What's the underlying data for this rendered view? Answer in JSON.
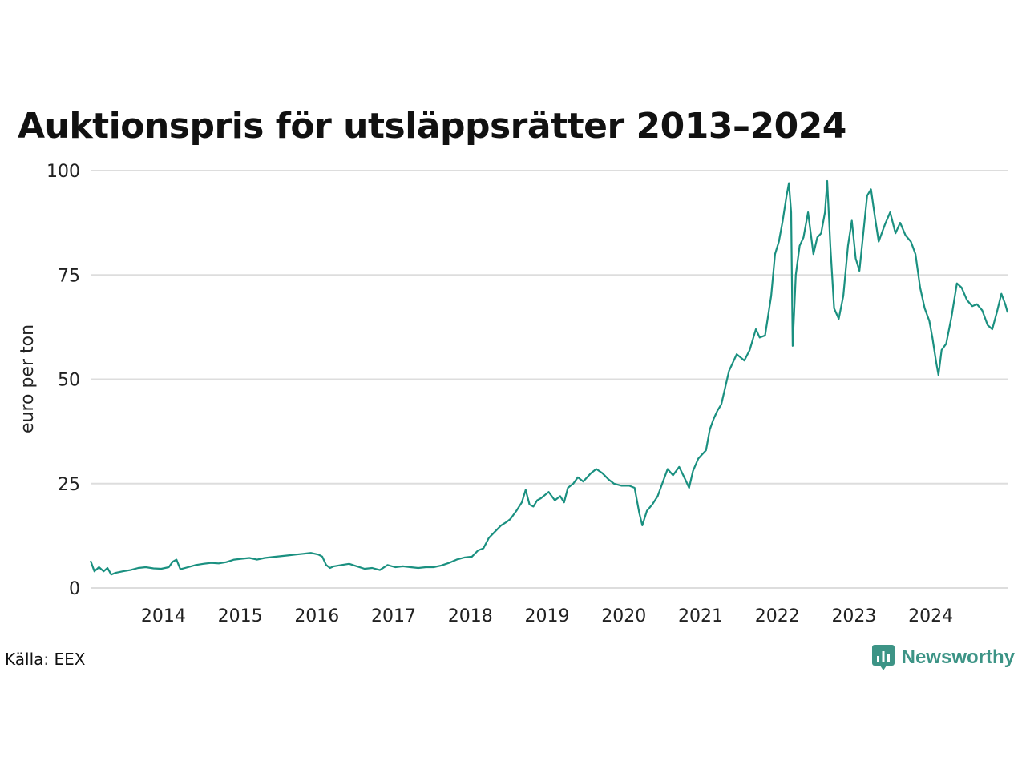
{
  "title": "Auktionspris för utsläppsrätter 2013–2024",
  "source": "Källa: EEX",
  "brand": {
    "name": "Newsworthy",
    "icon": "newsworthy-logo-icon",
    "color": "#3d9486"
  },
  "colors": {
    "line": "#1a9080",
    "grid": "#dddddd"
  },
  "chart_data": {
    "type": "line",
    "title": "Auktionspris för utsläppsrätter 2013–2024",
    "ylabel": "euro per ton",
    "xlabel": "",
    "ylim": [
      0,
      100
    ],
    "xlim": [
      2013.03,
      2024.98
    ],
    "grid": true,
    "yticks": [
      0,
      25,
      50,
      75,
      100
    ],
    "ytick_labels": [
      "0",
      "25",
      "50",
      "75",
      "100"
    ],
    "xticks": [
      2014,
      2015,
      2016,
      2017,
      2018,
      2019,
      2020,
      2021,
      2022,
      2023,
      2024
    ],
    "xtick_labels": [
      "2014",
      "2015",
      "2016",
      "2017",
      "2018",
      "2019",
      "2020",
      "2021",
      "2022",
      "2023",
      "2024"
    ],
    "series": [
      {
        "values": [
          [
            2013.03,
            6.5
          ],
          [
            2013.08,
            4.0
          ],
          [
            2013.14,
            5.0
          ],
          [
            2013.2,
            4.0
          ],
          [
            2013.25,
            4.8
          ],
          [
            2013.3,
            3.2
          ],
          [
            2013.35,
            3.6
          ],
          [
            2013.45,
            4.0
          ],
          [
            2013.55,
            4.3
          ],
          [
            2013.65,
            4.8
          ],
          [
            2013.75,
            5.0
          ],
          [
            2013.85,
            4.7
          ],
          [
            2013.95,
            4.6
          ],
          [
            2014.05,
            5.0
          ],
          [
            2014.1,
            6.3
          ],
          [
            2014.15,
            6.8
          ],
          [
            2014.2,
            4.5
          ],
          [
            2014.3,
            5.0
          ],
          [
            2014.4,
            5.5
          ],
          [
            2014.5,
            5.8
          ],
          [
            2014.6,
            6.0
          ],
          [
            2014.7,
            5.9
          ],
          [
            2014.8,
            6.2
          ],
          [
            2014.9,
            6.8
          ],
          [
            2015.0,
            7.0
          ],
          [
            2015.1,
            7.2
          ],
          [
            2015.2,
            6.8
          ],
          [
            2015.3,
            7.2
          ],
          [
            2015.4,
            7.4
          ],
          [
            2015.5,
            7.6
          ],
          [
            2015.6,
            7.8
          ],
          [
            2015.7,
            8.0
          ],
          [
            2015.8,
            8.2
          ],
          [
            2015.9,
            8.4
          ],
          [
            2016.0,
            8.0
          ],
          [
            2016.05,
            7.5
          ],
          [
            2016.1,
            5.5
          ],
          [
            2016.15,
            4.8
          ],
          [
            2016.2,
            5.2
          ],
          [
            2016.3,
            5.5
          ],
          [
            2016.4,
            5.8
          ],
          [
            2016.5,
            5.2
          ],
          [
            2016.6,
            4.6
          ],
          [
            2016.7,
            4.8
          ],
          [
            2016.8,
            4.3
          ],
          [
            2016.9,
            5.5
          ],
          [
            2017.0,
            5.0
          ],
          [
            2017.1,
            5.2
          ],
          [
            2017.2,
            5.0
          ],
          [
            2017.3,
            4.8
          ],
          [
            2017.4,
            5.0
          ],
          [
            2017.5,
            5.0
          ],
          [
            2017.6,
            5.4
          ],
          [
            2017.7,
            6.0
          ],
          [
            2017.8,
            6.8
          ],
          [
            2017.9,
            7.3
          ],
          [
            2018.0,
            7.5
          ],
          [
            2018.08,
            9.0
          ],
          [
            2018.15,
            9.5
          ],
          [
            2018.22,
            12.0
          ],
          [
            2018.3,
            13.5
          ],
          [
            2018.38,
            15.0
          ],
          [
            2018.45,
            15.8
          ],
          [
            2018.5,
            16.5
          ],
          [
            2018.58,
            18.5
          ],
          [
            2018.65,
            20.5
          ],
          [
            2018.7,
            23.5
          ],
          [
            2018.75,
            20.0
          ],
          [
            2018.8,
            19.5
          ],
          [
            2018.85,
            21.0
          ],
          [
            2018.9,
            21.5
          ],
          [
            2019.0,
            23.0
          ],
          [
            2019.08,
            21.0
          ],
          [
            2019.15,
            22.0
          ],
          [
            2019.2,
            20.5
          ],
          [
            2019.25,
            24.0
          ],
          [
            2019.32,
            25.0
          ],
          [
            2019.38,
            26.5
          ],
          [
            2019.45,
            25.5
          ],
          [
            2019.55,
            27.5
          ],
          [
            2019.62,
            28.5
          ],
          [
            2019.7,
            27.5
          ],
          [
            2019.78,
            26.0
          ],
          [
            2019.85,
            25.0
          ],
          [
            2019.95,
            24.5
          ],
          [
            2020.05,
            24.5
          ],
          [
            2020.12,
            24.0
          ],
          [
            2020.18,
            18.0
          ],
          [
            2020.22,
            15.0
          ],
          [
            2020.28,
            18.5
          ],
          [
            2020.35,
            20.0
          ],
          [
            2020.42,
            22.0
          ],
          [
            2020.5,
            26.0
          ],
          [
            2020.55,
            28.5
          ],
          [
            2020.62,
            27.0
          ],
          [
            2020.7,
            29.0
          ],
          [
            2020.78,
            26.0
          ],
          [
            2020.83,
            24.0
          ],
          [
            2020.88,
            28.0
          ],
          [
            2020.95,
            31.0
          ],
          [
            2021.0,
            32.0
          ],
          [
            2021.05,
            33.0
          ],
          [
            2021.1,
            38.0
          ],
          [
            2021.15,
            40.5
          ],
          [
            2021.2,
            42.5
          ],
          [
            2021.25,
            44.0
          ],
          [
            2021.3,
            48.0
          ],
          [
            2021.35,
            52.0
          ],
          [
            2021.4,
            54.0
          ],
          [
            2021.45,
            56.0
          ],
          [
            2021.55,
            54.5
          ],
          [
            2021.62,
            57.0
          ],
          [
            2021.7,
            62.0
          ],
          [
            2021.75,
            60.0
          ],
          [
            2021.82,
            60.5
          ],
          [
            2021.9,
            70.0
          ],
          [
            2021.95,
            80.0
          ],
          [
            2022.0,
            83.0
          ],
          [
            2022.05,
            88.0
          ],
          [
            2022.1,
            94.0
          ],
          [
            2022.13,
            97.0
          ],
          [
            2022.16,
            90.0
          ],
          [
            2022.18,
            58.0
          ],
          [
            2022.22,
            75.0
          ],
          [
            2022.27,
            82.0
          ],
          [
            2022.32,
            84.0
          ],
          [
            2022.38,
            90.0
          ],
          [
            2022.45,
            80.0
          ],
          [
            2022.5,
            84.0
          ],
          [
            2022.55,
            85.0
          ],
          [
            2022.6,
            90.0
          ],
          [
            2022.63,
            97.5
          ],
          [
            2022.67,
            82.0
          ],
          [
            2022.72,
            67.0
          ],
          [
            2022.78,
            64.5
          ],
          [
            2022.84,
            70.0
          ],
          [
            2022.9,
            82.0
          ],
          [
            2022.95,
            88.0
          ],
          [
            2023.0,
            79.0
          ],
          [
            2023.05,
            76.0
          ],
          [
            2023.1,
            85.0
          ],
          [
            2023.15,
            94.0
          ],
          [
            2023.2,
            95.5
          ],
          [
            2023.25,
            89.0
          ],
          [
            2023.3,
            83.0
          ],
          [
            2023.38,
            87.0
          ],
          [
            2023.45,
            90.0
          ],
          [
            2023.52,
            85.0
          ],
          [
            2023.58,
            87.5
          ],
          [
            2023.65,
            84.5
          ],
          [
            2023.72,
            83.0
          ],
          [
            2023.78,
            80.0
          ],
          [
            2023.84,
            72.0
          ],
          [
            2023.9,
            67.0
          ],
          [
            2023.96,
            64.0
          ],
          [
            2024.0,
            60.0
          ],
          [
            2024.05,
            54.0
          ],
          [
            2024.08,
            51.0
          ],
          [
            2024.12,
            57.0
          ],
          [
            2024.18,
            58.5
          ],
          [
            2024.25,
            65.0
          ],
          [
            2024.32,
            73.0
          ],
          [
            2024.38,
            72.0
          ],
          [
            2024.45,
            69.0
          ],
          [
            2024.52,
            67.5
          ],
          [
            2024.58,
            68.0
          ],
          [
            2024.65,
            66.5
          ],
          [
            2024.72,
            63.0
          ],
          [
            2024.78,
            62.0
          ],
          [
            2024.84,
            66.0
          ],
          [
            2024.9,
            70.5
          ],
          [
            2024.95,
            68.0
          ],
          [
            2024.98,
            66.0
          ]
        ]
      }
    ]
  }
}
